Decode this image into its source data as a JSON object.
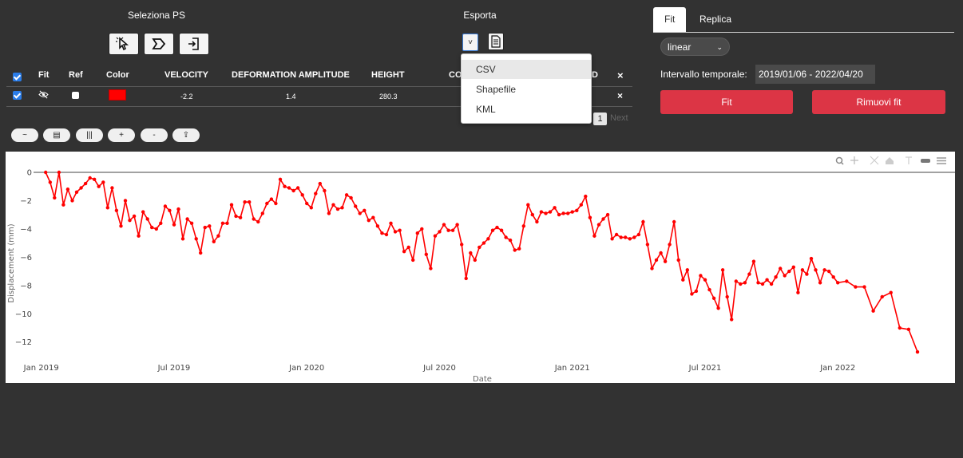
{
  "select_section": {
    "title": "Seleziona PS",
    "tools": [
      "pointer-select-icon",
      "polygon-select-icon",
      "import-icon"
    ]
  },
  "export_section": {
    "title": "Esporta",
    "dropdown_caret": "˅",
    "menu": [
      "CSV",
      "Shapefile",
      "KML"
    ],
    "active_item": "CSV"
  },
  "table": {
    "headers": {
      "fit": "Fit",
      "ref": "Ref",
      "color": "Color",
      "velocity": "VELOCITY",
      "deformation": "DEFORMATION AMPLITUDE",
      "height": "HEIGHT",
      "coherence_partial": "CO",
      "id_partial": "D",
      "close": "×"
    },
    "row": {
      "velocity": "-2.2",
      "deformation": "1.4",
      "height": "280.3",
      "color": "#ff0000",
      "close": "×"
    },
    "pagination": {
      "page": "1",
      "next": "Next"
    }
  },
  "chart_controls": [
    "~",
    "▤",
    "|||",
    "+",
    "-",
    "⇪"
  ],
  "right_panel": {
    "tabs": [
      "Fit",
      "Replica"
    ],
    "active_tab": "Fit",
    "fit_type": "linear",
    "interval_label": "Intervallo temporale:",
    "interval_value": "2019/01/06 - 2022/04/20",
    "fit_button": "Fit",
    "remove_button": "Rimuovi fit"
  },
  "chart_data": {
    "type": "line",
    "xlabel": "Date",
    "ylabel": "Displacement (mm)",
    "x_ticks": [
      "Jan 2019",
      "Jul 2019",
      "Jan 2020",
      "Jul 2020",
      "Jan 2021",
      "Jul 2021",
      "Jan 2022"
    ],
    "y_ticks": [
      "0",
      "−2",
      "−4",
      "−6",
      "−8",
      "−10",
      "−12"
    ],
    "ylim": [
      -13.2,
      0.9
    ],
    "xlim_months": [
      -0.35,
      40.25
    ],
    "line_color": "#ff0000",
    "series": [
      {
        "x_months": [
          0.2,
          0.4,
          0.6,
          0.8,
          1,
          1.2,
          1.4,
          1.6,
          1.8,
          2,
          2.2,
          2.4,
          2.6,
          2.8,
          3,
          3.2,
          3.4,
          3.6,
          3.8,
          4,
          4.2,
          4.4,
          4.6,
          4.8,
          5,
          5.2,
          5.4,
          5.6,
          5.8,
          6,
          6.2,
          6.4,
          6.6,
          6.8,
          7,
          7.2,
          7.4,
          7.6,
          7.8,
          8,
          8.2,
          8.4,
          8.6,
          8.8,
          9,
          9.2,
          9.4,
          9.6,
          9.8,
          10,
          10.2,
          10.4,
          10.6,
          10.8,
          11,
          11.2,
          11.4,
          11.6,
          11.8,
          12,
          12.2,
          12.4,
          12.6,
          12.8,
          13,
          13.2,
          13.4,
          13.6,
          13.8,
          14,
          14.2,
          14.4,
          14.6,
          14.8,
          15,
          15.2,
          15.4,
          15.6,
          15.8,
          16,
          16.2,
          16.4,
          16.6,
          16.8,
          17,
          17.2,
          17.4,
          17.6,
          17.8,
          18,
          18.2,
          18.4,
          18.6,
          18.8,
          19,
          19.2,
          19.4,
          19.6,
          19.8,
          20,
          20.2,
          20.4,
          20.6,
          20.8,
          21,
          21.2,
          21.4,
          21.6,
          21.8,
          22,
          22.2,
          22.4,
          22.6,
          22.8,
          23,
          23.2,
          23.4,
          23.6,
          23.8,
          24,
          24.2,
          24.4,
          24.6,
          24.8,
          25,
          25.2,
          25.4,
          25.6,
          25.8,
          26,
          26.2,
          26.4,
          26.6,
          26.8,
          27,
          27.2,
          27.4,
          27.6,
          27.8,
          28,
          28.2,
          28.4,
          28.6,
          28.8,
          29,
          29.2,
          29.4,
          29.6,
          29.8,
          30,
          30.2,
          30.4,
          30.6,
          30.8,
          31,
          31.2,
          31.4,
          31.6,
          31.8,
          32,
          32.2,
          32.4,
          32.6,
          32.8,
          33,
          33.2,
          33.4,
          33.6,
          33.8,
          34,
          34.2,
          34.4,
          34.6,
          34.8,
          35,
          35.2,
          35.4,
          35.6,
          35.8,
          36,
          36.4,
          36.8,
          37.2,
          37.6,
          38,
          38.4,
          38.8,
          39.2,
          39.6
        ],
        "y": [
          0,
          -0.7,
          -1.8,
          0,
          -2.3,
          -1.2,
          -2,
          -1.4,
          -1.1,
          -0.8,
          -0.4,
          -0.5,
          -1,
          -0.7,
          -2.5,
          -1.1,
          -2.7,
          -3.8,
          -2,
          -3.4,
          -3.1,
          -4.5,
          -2.8,
          -3.3,
          -3.9,
          -4,
          -3.6,
          -2.4,
          -2.7,
          -3.7,
          -2.6,
          -4.7,
          -3.3,
          -3.6,
          -4.7,
          -5.7,
          -3.9,
          -3.8,
          -4.9,
          -4.5,
          -3.6,
          -3.6,
          -2.3,
          -3.1,
          -3.2,
          -2.1,
          -2.1,
          -3.3,
          -3.5,
          -2.9,
          -2.2,
          -1.9,
          -2.2,
          -0.5,
          -1,
          -1.1,
          -1.3,
          -1.1,
          -1.6,
          -2.2,
          -2.5,
          -1.5,
          -0.8,
          -1.3,
          -2.9,
          -2.3,
          -2.6,
          -2.5,
          -1.6,
          -1.8,
          -2.4,
          -2.9,
          -2.7,
          -3.4,
          -3.2,
          -3.8,
          -4.3,
          -4.4,
          -3.6,
          -4.2,
          -4.1,
          -5.6,
          -5.3,
          -6.2,
          -4.3,
          -4,
          -5.8,
          -6.8,
          -4.5,
          -4.2,
          -3.7,
          -4.1,
          -4.1,
          -3.7,
          -5.1,
          -7.5,
          -5.7,
          -6.2,
          -5.3,
          -5,
          -4.7,
          -4.1,
          -3.9,
          -4.1,
          -4.6,
          -4.8,
          -5.5,
          -5.4,
          -3.8,
          -2.3,
          -3,
          -3.5,
          -2.8,
          -2.9,
          -2.8,
          -2.5,
          -3,
          -2.9,
          -2.9,
          -2.8,
          -2.7,
          -2.3,
          -1.7,
          -3.2,
          -4.5,
          -3.7,
          -3.3,
          -3,
          -4.7,
          -4.4,
          -4.6,
          -4.6,
          -4.7,
          -4.6,
          -4.4,
          -3.5,
          -5.1,
          -6.8,
          -6.2,
          -5.7,
          -6.3,
          -5.1,
          -3.5,
          -6.2,
          -7.6,
          -6.9,
          -8.6,
          -8.4,
          -7.3,
          -7.6,
          -8.3,
          -8.9,
          -9.6,
          -6.9,
          -8.8,
          -10.4,
          -7.7,
          -7.9,
          -7.8,
          -7.2,
          -6.3,
          -7.8,
          -7.9,
          -7.6,
          -7.9,
          -7.4,
          -6.8,
          -7.3,
          -7,
          -6.7,
          -8.5,
          -6.9,
          -7.2,
          -6.1,
          -6.9,
          -7.8,
          -6.9,
          -7,
          -7.4,
          -7.8,
          -7.7,
          -8.1,
          -8.1,
          -9.8,
          -8.8,
          -8.5,
          -11,
          -11.1,
          -12.7
        ]
      }
    ]
  }
}
